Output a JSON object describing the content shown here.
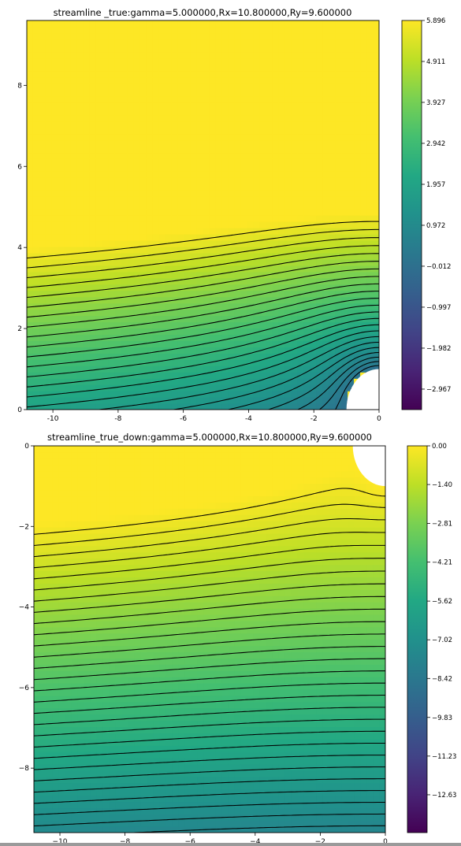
{
  "chart_data": [
    {
      "type": "contour",
      "title": "streamline _true:gamma=5.000000,Rx=10.800000,Ry=9.600000",
      "xlim": [
        -10.8,
        0
      ],
      "ylim": [
        0,
        9.6
      ],
      "x_ticks": [
        "-10",
        "-8",
        "-6",
        "-4",
        "-2",
        "0"
      ],
      "y_ticks": [
        "0",
        "2",
        "4",
        "6",
        "8"
      ],
      "colormap": "viridis",
      "colorbar": {
        "range": [
          -3.46,
          5.896
        ],
        "ticks": [
          "5.896",
          "4.911",
          "3.927",
          "2.942",
          "1.957",
          "0.972",
          "−0.012",
          "−0.997",
          "−1.982",
          "−2.967"
        ]
      },
      "contour_levels": 38,
      "negative_levels_style": "dashed",
      "obstacle": {
        "shape": "quarter-circle",
        "center": [
          0,
          0
        ],
        "radius": 1
      }
    },
    {
      "type": "contour",
      "title": "streamline_true_down:gamma=5.000000,Rx=10.800000,Ry=9.600000",
      "xlim": [
        -10.8,
        0
      ],
      "ylim": [
        -9.6,
        0
      ],
      "x_ticks": [
        "−10",
        "−8",
        "−6",
        "−4",
        "−2",
        "0"
      ],
      "y_ticks": [
        "0",
        "−2",
        "−4",
        "−6",
        "−8"
      ],
      "colormap": "viridis",
      "colorbar": {
        "range": [
          -14.0,
          0.0
        ],
        "ticks": [
          "0.00",
          "−1.40",
          "−2.81",
          "−4.21",
          "−5.62",
          "−7.02",
          "−8.42",
          "−9.83",
          "−11.23",
          "−12.63"
        ]
      },
      "contour_levels": 52,
      "negative_levels_style": "dashed",
      "obstacle": {
        "shape": "quarter-circle",
        "center": [
          0,
          0
        ],
        "radius": 1
      }
    }
  ]
}
